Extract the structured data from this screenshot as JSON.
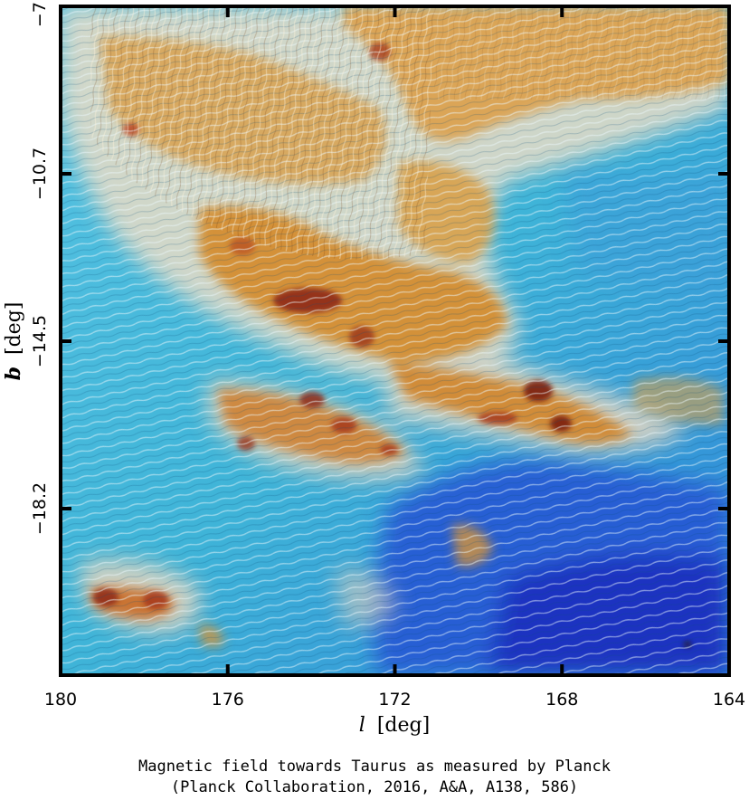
{
  "figure": {
    "x_axis": {
      "label_symbol": "l",
      "label_unit": "[deg]",
      "ticks": [
        "180",
        "176",
        "172",
        "168",
        "164"
      ]
    },
    "y_axis": {
      "label_symbol": "b",
      "label_unit": "[deg]",
      "ticks": [
        "−7.0",
        "−10.7",
        "−14.5",
        "−18.2"
      ]
    },
    "colors": {
      "background_blue": "#3fb4d8",
      "deep_blue": "#1c3fd0",
      "dust_orange": "#d9962e",
      "dust_dark": "#7a2010",
      "streak": "#eaf7fb"
    }
  },
  "caption": {
    "line1": "Magnetic field towards Taurus as measured by Planck",
    "line2": "(Planck Collaboration, 2016, A&A, A138, 586)"
  }
}
